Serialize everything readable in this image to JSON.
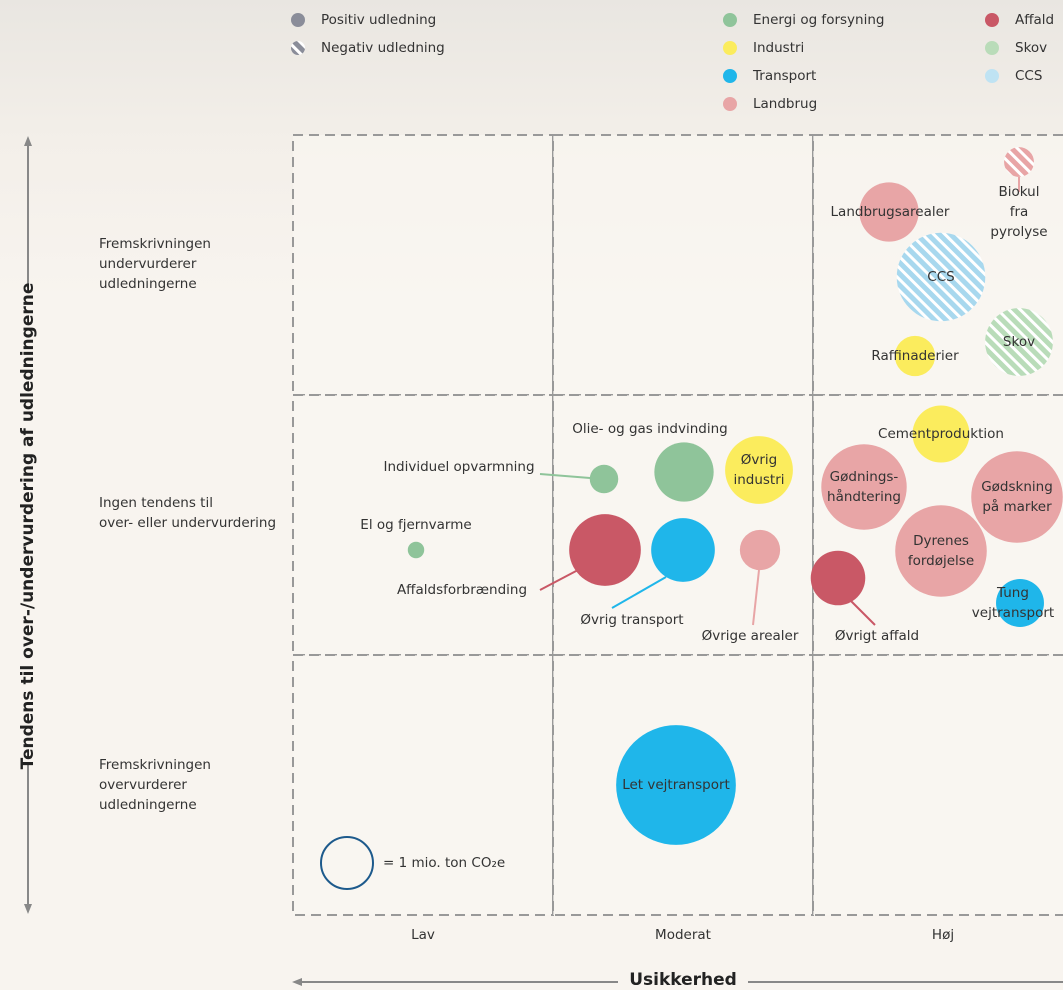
{
  "chart_data": {
    "type": "bubble",
    "x_label": "Usikkerhed",
    "y_label": "Tendens til over-/undervurdering af udledningerne",
    "x_categories": [
      "Lav",
      "Moderat",
      "Høj"
    ],
    "y_categories": [
      "Fremskrivningen\nundervurderer\nudledningerne",
      "Ingen tendens til\nover- eller undervurdering",
      "Fremskrivningen\novervurderer\nudledningerne"
    ],
    "emission_legend": [
      {
        "name": "Positiv udledning",
        "color": "#8a8d99",
        "negative": false
      },
      {
        "name": "Negativ udledning",
        "color": "#8a8d99",
        "negative": true
      }
    ],
    "sector_legend": [
      {
        "name": "Energi og forsyning",
        "color": "#8fc49a"
      },
      {
        "name": "Industri",
        "color": "#fbec5d"
      },
      {
        "name": "Transport",
        "color": "#1fb6ea"
      },
      {
        "name": "Landbrug",
        "color": "#e8a5a6"
      },
      {
        "name": "Affald",
        "color": "#c95866"
      },
      {
        "name": "Skov",
        "color": "#b9dcb9"
      },
      {
        "name": "CCS",
        "color": "#bfe3f3"
      }
    ],
    "size_reference": {
      "label": "= 1 mio. ton CO₂e",
      "value": 1
    },
    "bubbles": [
      {
        "name": "Biokul fra\npyrolyse",
        "value": 0.33,
        "color": "#e8a5a6",
        "negative": true
      },
      {
        "name": "Landbrugsarealer",
        "value": 1.3,
        "color": "#e8a5a6",
        "negative": false
      },
      {
        "name": "CCS",
        "value": 2.9,
        "color": "#a8d8ee",
        "negative": true
      },
      {
        "name": "Raffinaderier",
        "value": 0.6,
        "color": "#fbec5d",
        "negative": false
      },
      {
        "name": "Skov",
        "value": 1.7,
        "color": "#b9dcb9",
        "negative": true
      },
      {
        "name": "Cementproduktion",
        "value": 1.2,
        "color": "#fbec5d",
        "negative": false
      },
      {
        "name": "Gødnings-\nhåndtering",
        "value": 2.7,
        "color": "#e8a5a6",
        "negative": false
      },
      {
        "name": "Gødskning\npå marker",
        "value": 3.1,
        "color": "#e8a5a6",
        "negative": false
      },
      {
        "name": "Dyrenes\nfordøjelse",
        "value": 3.1,
        "color": "#e8a5a6",
        "negative": false
      },
      {
        "name": "Tung\nvejtransport",
        "value": 0.85,
        "color": "#1fb6ea",
        "negative": false
      },
      {
        "name": "Øvrigt affald",
        "value": 1.1,
        "color": "#c95866",
        "negative": false
      },
      {
        "name": "Øvrig\nindustri",
        "value": 1.7,
        "color": "#fbec5d",
        "negative": false
      },
      {
        "name": "Olie- og gas indvinding",
        "value": 1.3,
        "color": "#8fc49a",
        "negative": false
      },
      {
        "name": "Individuel opvarmning",
        "value": 0.3,
        "color": "#8fc49a",
        "negative": false
      },
      {
        "name": "El og fjernvarme",
        "value": 0.1,
        "color": "#8fc49a",
        "negative": false
      },
      {
        "name": "Affaldsforbrænding",
        "value": 1.9,
        "color": "#c95866",
        "negative": false
      },
      {
        "name": "Øvrig transport",
        "value": 1.5,
        "color": "#1fb6ea",
        "negative": false
      },
      {
        "name": "Øvrige arealer",
        "value": 0.6,
        "color": "#e8a5a6",
        "negative": false
      },
      {
        "name": "Let vejtransport",
        "value": 5.3,
        "color": "#1fb6ea",
        "negative": false
      }
    ]
  }
}
